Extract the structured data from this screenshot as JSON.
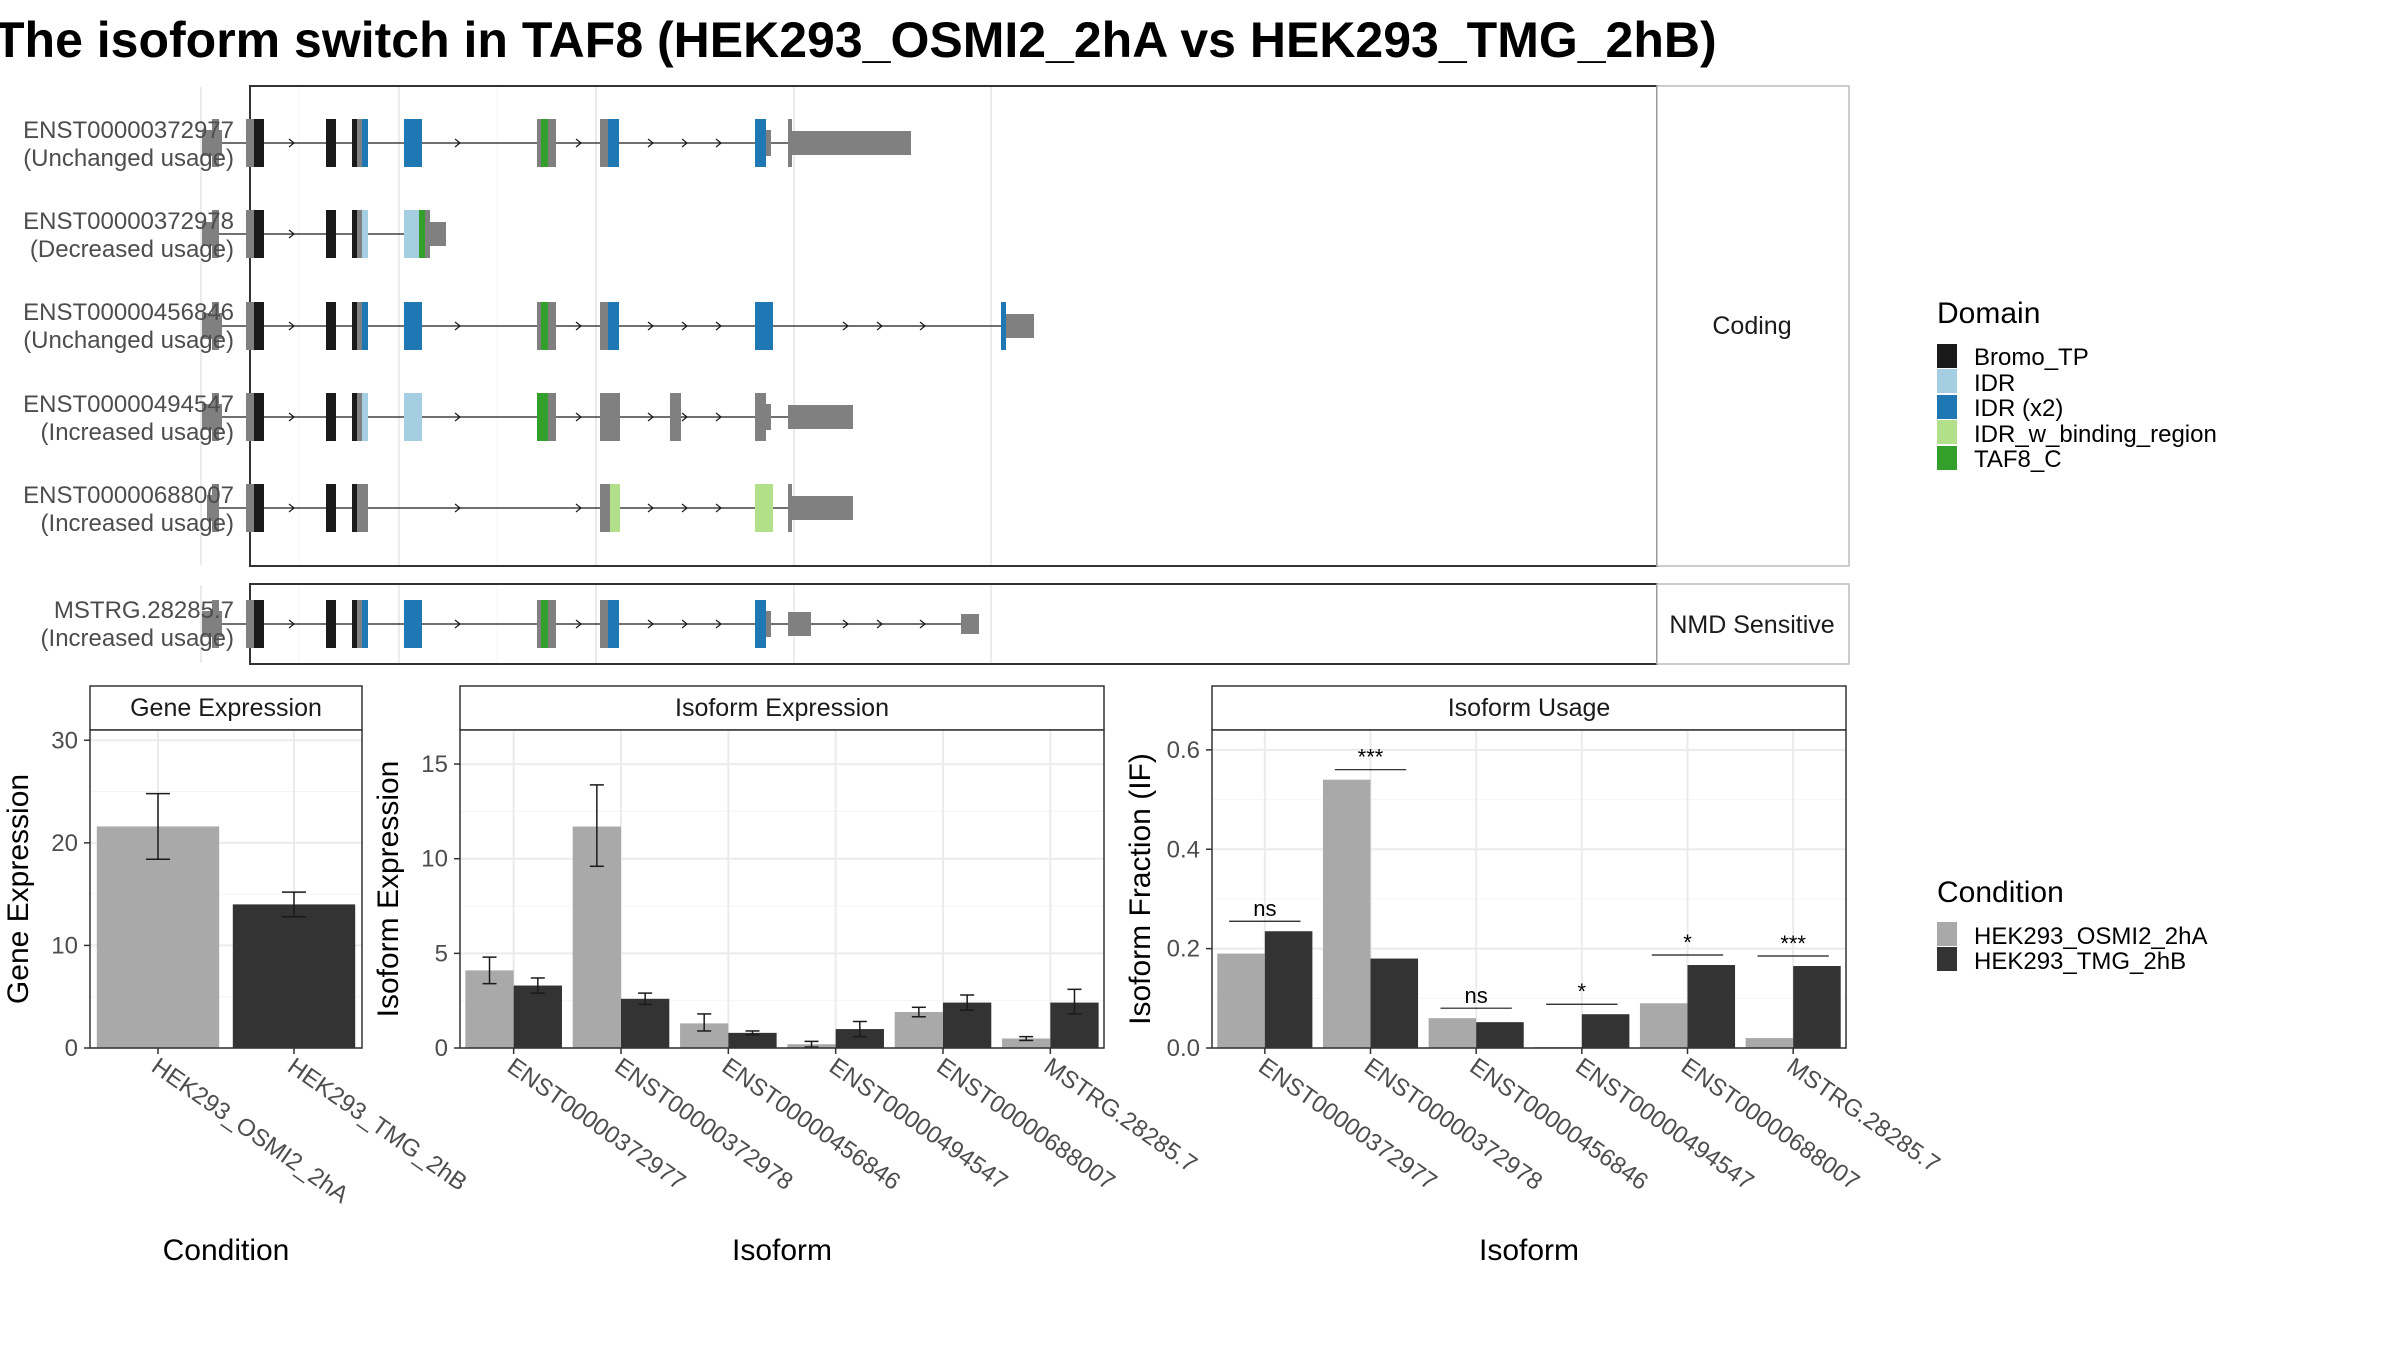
{
  "title": "The isoform switch in TAF8 (HEK293_OSMI2_2hA vs HEK293_TMG_2hB)",
  "colors": {
    "cond_a": "#a9a9a9",
    "cond_b": "#333333",
    "non_domain": "#808080",
    "Bromo_TP": "#1a1a1a",
    "IDR": "#a6cee3",
    "IDR (x2)": "#1f78b4",
    "IDR_w_binding_region": "#b2df8a",
    "TAF8_C": "#33a02c"
  },
  "structure": {
    "panels": [
      {
        "label": "Coding",
        "transcripts": [
          {
            "id": "ENST00000372977",
            "status": "(Unchanged usage)",
            "utr3": "long"
          },
          {
            "id": "ENST00000372978",
            "status": "(Decreased usage)",
            "utr3": "short_idr"
          },
          {
            "id": "ENST00000456846",
            "status": "(Unchanged usage)",
            "utr3": "far"
          },
          {
            "id": "ENST00000494547",
            "status": "(Increased usage)",
            "utr3": "medium"
          },
          {
            "id": "ENST00000688007",
            "status": "(Increased usage)",
            "utr3": "medium_alt"
          }
        ]
      },
      {
        "label": "NMD Sensitive",
        "transcripts": [
          {
            "id": "MSTRG.28285.7",
            "status": "(Increased usage)",
            "utr3": "nmd"
          }
        ]
      }
    ]
  },
  "domain_legend": {
    "title": "Domain",
    "items": [
      "Bromo_TP",
      "IDR",
      "IDR (x2)",
      "IDR_w_binding_region",
      "TAF8_C"
    ]
  },
  "condition_legend": {
    "title": "Condition",
    "items": [
      "HEK293_OSMI2_2hA",
      "HEK293_TMG_2hB"
    ]
  },
  "chart_data": [
    {
      "type": "bar",
      "title": "Gene Expression",
      "xlabel": "Condition",
      "ylabel": "Gene Expression",
      "categories": [
        "HEK293_OSMI2_2hA",
        "HEK293_TMG_2hB"
      ],
      "values": [
        21.6,
        14.0
      ],
      "error_low": [
        18.4,
        12.8
      ],
      "error_high": [
        24.8,
        15.2
      ],
      "ylim": [
        0,
        31
      ],
      "yticks": [
        0,
        10,
        20,
        30
      ],
      "grid": true
    },
    {
      "type": "bar",
      "title": "Isoform Expression",
      "xlabel": "Isoform",
      "ylabel": "Isoform Expression",
      "categories": [
        "ENST00000372977",
        "ENST00000372978",
        "ENST00000456846",
        "ENST00000494547",
        "ENST00000688007",
        "MSTRG.28285.7"
      ],
      "series": [
        {
          "name": "HEK293_OSMI2_2hA",
          "values": [
            4.1,
            11.7,
            1.3,
            0.2,
            1.9,
            0.5
          ],
          "error_low": [
            3.4,
            9.6,
            0.9,
            0.05,
            1.65,
            0.4
          ],
          "error_high": [
            4.8,
            13.9,
            1.8,
            0.35,
            2.15,
            0.6
          ]
        },
        {
          "name": "HEK293_TMG_2hB",
          "values": [
            3.3,
            2.6,
            0.8,
            1.0,
            2.4,
            2.4
          ],
          "error_low": [
            2.9,
            2.3,
            0.7,
            0.6,
            2.0,
            1.8
          ],
          "error_high": [
            3.7,
            2.9,
            0.9,
            1.4,
            2.8,
            3.1
          ]
        }
      ],
      "ylim": [
        0,
        16.8
      ],
      "yticks": [
        0,
        5,
        10,
        15
      ],
      "grid": true
    },
    {
      "type": "bar",
      "title": "Isoform Usage",
      "xlabel": "Isoform",
      "ylabel": "Isoform Fraction (IF)",
      "categories": [
        "ENST00000372977",
        "ENST00000372978",
        "ENST00000456846",
        "ENST00000494547",
        "ENST00000688007",
        "MSTRG.28285.7"
      ],
      "series": [
        {
          "name": "HEK293_OSMI2_2hA",
          "values": [
            0.19,
            0.54,
            0.06,
            0.002,
            0.09,
            0.02
          ]
        },
        {
          "name": "HEK293_TMG_2hB",
          "values": [
            0.235,
            0.18,
            0.052,
            0.068,
            0.167,
            0.165
          ]
        }
      ],
      "significance": [
        "ns",
        "***",
        "ns",
        "*",
        "*",
        "***"
      ],
      "ylim": [
        0,
        0.64
      ],
      "yticks": [
        0.0,
        0.2,
        0.4,
        0.6
      ],
      "yticklabels": [
        "0.0",
        "0.2",
        "0.4",
        "0.6"
      ],
      "grid": true
    }
  ]
}
